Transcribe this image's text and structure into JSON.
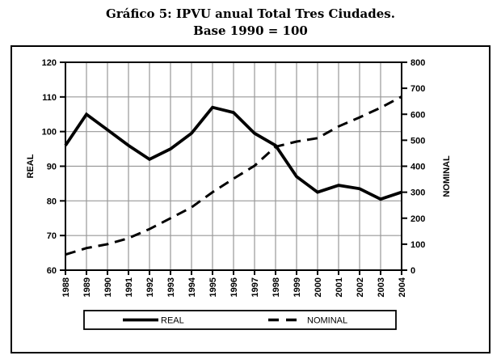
{
  "title": {
    "line1": "Gráfico 5: IPVU anual Total Tres Ciudades.",
    "line2": "Base 1990 = 100"
  },
  "chart_data": {
    "type": "line",
    "title": "Gráfico 5: IPVU anual Total Tres Ciudades. Base 1990 = 100",
    "categories": [
      "1988",
      "1989",
      "1990",
      "1991",
      "1992",
      "1993",
      "1994",
      "1995",
      "1996",
      "1997",
      "1998",
      "1999",
      "2000",
      "2001",
      "2002",
      "2003",
      "2004"
    ],
    "series": [
      {
        "name": "REAL",
        "axis": "left",
        "style": "solid",
        "color": "#000000",
        "values": [
          96,
          105,
          100.5,
          96,
          92,
          95,
          99.5,
          107,
          105.5,
          99.5,
          96,
          87,
          82.5,
          84.5,
          83.5,
          80.5,
          82.5
        ]
      },
      {
        "name": "NOMINAL",
        "axis": "right",
        "style": "dashed",
        "color": "#000000",
        "values": [
          60,
          85,
          100,
          123,
          158,
          200,
          242,
          300,
          352,
          402,
          475,
          495,
          508,
          553,
          588,
          625,
          668
        ]
      }
    ],
    "left_axis": {
      "label": "REAL",
      "min": 60,
      "max": 120,
      "tick_step": 10,
      "ticks": [
        60,
        70,
        80,
        90,
        100,
        110,
        120
      ]
    },
    "right_axis": {
      "label": "NOMINAL",
      "min": 0,
      "max": 800,
      "tick_step": 100,
      "ticks": [
        0,
        100,
        200,
        300,
        400,
        500,
        600,
        700,
        800
      ]
    },
    "grid": true,
    "legend": {
      "position": "bottom",
      "entries": [
        "REAL",
        "NOMINAL"
      ]
    }
  },
  "colors": {
    "line": "#000000",
    "gridline": "#989898",
    "background": "#ffffff",
    "text": "#000000"
  }
}
